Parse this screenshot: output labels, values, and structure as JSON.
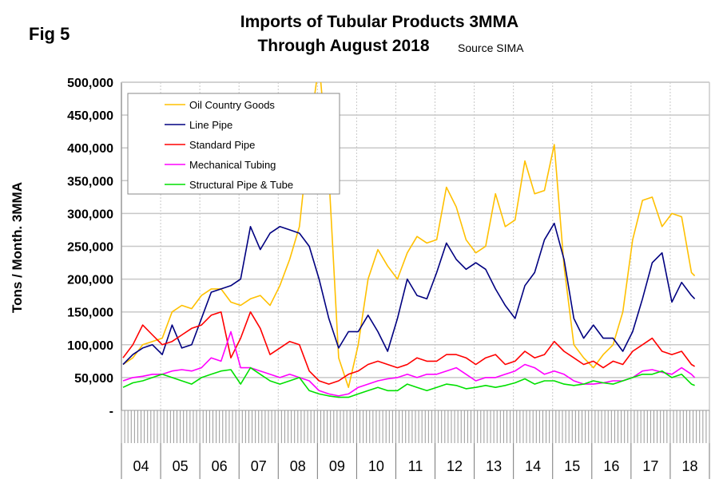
{
  "figure_label": "Fig 5",
  "chart_data": {
    "type": "line",
    "title": "Imports of Tubular Products 3MMA",
    "subtitle": "Through August 2018",
    "source": "Source SIMA",
    "ylabel": "Tons / Month. 3MMA",
    "xlabel": "",
    "ylim": [
      0,
      500000
    ],
    "yticks": [
      0,
      50000,
      100000,
      150000,
      200000,
      250000,
      300000,
      350000,
      400000,
      450000,
      500000
    ],
    "ytick_labels": [
      "-",
      "50,000",
      "100,000",
      "150,000",
      "200,000",
      "250,000",
      "300,000",
      "350,000",
      "400,000",
      "450,000",
      "500,000"
    ],
    "xtick_labels": [
      "04",
      "05",
      "06",
      "07",
      "08",
      "09",
      "10",
      "11",
      "12",
      "13",
      "14",
      "15",
      "16",
      "17",
      "18"
    ],
    "grid": true,
    "legend_placement": "top-left",
    "x": [
      "2004-01",
      "2004-04",
      "2004-07",
      "2004-10",
      "2005-01",
      "2005-04",
      "2005-07",
      "2005-10",
      "2006-01",
      "2006-04",
      "2006-07",
      "2006-10",
      "2007-01",
      "2007-04",
      "2007-07",
      "2007-10",
      "2008-01",
      "2008-04",
      "2008-07",
      "2008-10",
      "2009-01",
      "2009-04",
      "2009-07",
      "2009-10",
      "2010-01",
      "2010-04",
      "2010-07",
      "2010-10",
      "2011-01",
      "2011-04",
      "2011-07",
      "2011-10",
      "2012-01",
      "2012-04",
      "2012-07",
      "2012-10",
      "2013-01",
      "2013-04",
      "2013-07",
      "2013-10",
      "2014-01",
      "2014-04",
      "2014-07",
      "2014-10",
      "2015-01",
      "2015-04",
      "2015-07",
      "2015-10",
      "2016-01",
      "2016-04",
      "2016-07",
      "2016-10",
      "2017-01",
      "2017-04",
      "2017-07",
      "2017-10",
      "2018-01",
      "2018-04",
      "2018-07",
      "2018-08"
    ],
    "series": [
      {
        "name": "Oil Country Goods",
        "color": "#FFC000",
        "values": [
          70000,
          80000,
          100000,
          105000,
          110000,
          150000,
          160000,
          155000,
          175000,
          185000,
          185000,
          165000,
          160000,
          170000,
          175000,
          160000,
          190000,
          230000,
          280000,
          420000,
          530000,
          360000,
          80000,
          35000,
          100000,
          200000,
          245000,
          220000,
          200000,
          240000,
          265000,
          255000,
          260000,
          340000,
          310000,
          260000,
          240000,
          250000,
          330000,
          280000,
          290000,
          380000,
          330000,
          335000,
          405000,
          220000,
          100000,
          80000,
          65000,
          85000,
          100000,
          150000,
          260000,
          320000,
          325000,
          280000,
          300000,
          295000,
          210000,
          205000
        ]
      },
      {
        "name": "Line Pipe",
        "color": "#000080",
        "values": [
          70000,
          85000,
          95000,
          100000,
          85000,
          130000,
          95000,
          100000,
          140000,
          180000,
          185000,
          190000,
          200000,
          280000,
          245000,
          270000,
          280000,
          275000,
          270000,
          250000,
          200000,
          140000,
          95000,
          120000,
          120000,
          145000,
          120000,
          90000,
          140000,
          200000,
          175000,
          170000,
          210000,
          255000,
          230000,
          215000,
          225000,
          215000,
          185000,
          160000,
          140000,
          190000,
          210000,
          260000,
          285000,
          230000,
          140000,
          110000,
          130000,
          110000,
          110000,
          90000,
          120000,
          170000,
          225000,
          240000,
          165000,
          195000,
          175000,
          170000
        ]
      },
      {
        "name": "Standard Pipe",
        "color": "#FF0000",
        "values": [
          80000,
          100000,
          130000,
          115000,
          100000,
          105000,
          115000,
          125000,
          130000,
          145000,
          150000,
          80000,
          110000,
          150000,
          125000,
          85000,
          95000,
          105000,
          100000,
          60000,
          45000,
          40000,
          45000,
          55000,
          60000,
          70000,
          75000,
          70000,
          65000,
          70000,
          80000,
          75000,
          75000,
          85000,
          85000,
          80000,
          70000,
          80000,
          85000,
          70000,
          75000,
          90000,
          80000,
          85000,
          105000,
          90000,
          80000,
          70000,
          75000,
          65000,
          75000,
          70000,
          90000,
          100000,
          110000,
          90000,
          85000,
          90000,
          70000,
          67000
        ]
      },
      {
        "name": "Mechanical Tubing",
        "color": "#FF00FF",
        "values": [
          45000,
          50000,
          52000,
          55000,
          55000,
          60000,
          62000,
          60000,
          65000,
          80000,
          75000,
          120000,
          65000,
          65000,
          60000,
          55000,
          50000,
          55000,
          50000,
          45000,
          30000,
          25000,
          22000,
          25000,
          35000,
          40000,
          45000,
          48000,
          50000,
          55000,
          50000,
          55000,
          55000,
          60000,
          65000,
          55000,
          45000,
          50000,
          50000,
          55000,
          60000,
          70000,
          65000,
          55000,
          60000,
          55000,
          45000,
          40000,
          40000,
          42000,
          45000,
          45000,
          50000,
          60000,
          62000,
          58000,
          55000,
          65000,
          55000,
          50000
        ]
      },
      {
        "name": "Structural Pipe & Tube",
        "color": "#00E000",
        "values": [
          35000,
          42000,
          45000,
          50000,
          55000,
          50000,
          45000,
          40000,
          50000,
          55000,
          60000,
          62000,
          40000,
          65000,
          55000,
          45000,
          40000,
          45000,
          50000,
          30000,
          25000,
          22000,
          20000,
          20000,
          25000,
          30000,
          35000,
          30000,
          30000,
          40000,
          35000,
          30000,
          35000,
          40000,
          38000,
          33000,
          35000,
          38000,
          35000,
          38000,
          42000,
          48000,
          40000,
          45000,
          45000,
          40000,
          38000,
          40000,
          45000,
          42000,
          40000,
          45000,
          50000,
          55000,
          55000,
          60000,
          50000,
          55000,
          40000,
          38000
        ]
      }
    ]
  }
}
